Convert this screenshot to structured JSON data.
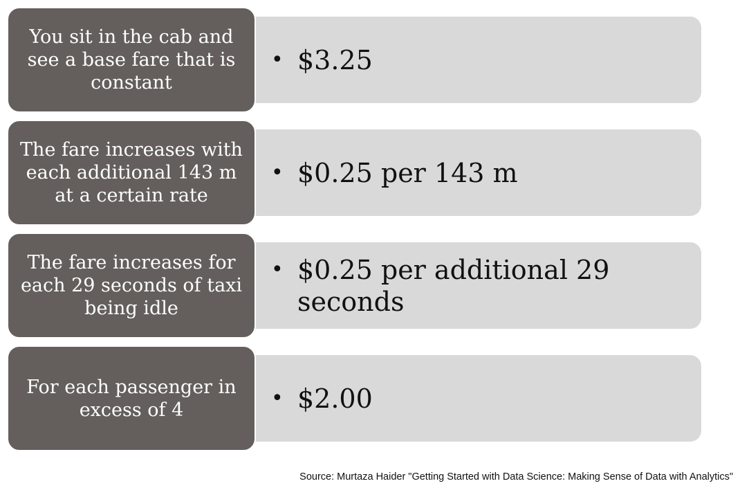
{
  "rows": [
    {
      "label": "You sit in the cab and see a base fare that is constant",
      "detail": "$3.25"
    },
    {
      "label": "The fare increases with each additional 143 m at a certain rate",
      "detail": "$0.25 per 143 m"
    },
    {
      "label": "The fare increases for each 29 seconds of taxi being idle",
      "detail": "$0.25 per additional 29 seconds"
    },
    {
      "label": "For each passenger in excess of 4",
      "detail": "$2.00"
    }
  ],
  "source": "Source: Murtaza Haider \"Getting Started with Data Science: Making Sense of Data with Analytics\"",
  "colors": {
    "label_background": "#645f5c",
    "detail_background": "#d9d9d9"
  }
}
